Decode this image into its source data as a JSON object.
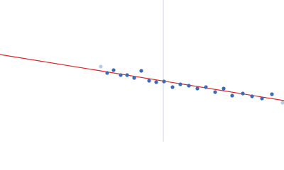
{
  "chart_data": {
    "type": "scatter",
    "xlim": [
      0,
      400
    ],
    "ylim": [
      0,
      200
    ],
    "series": [
      {
        "color": "#b8cbe6",
        "x": [
          142,
          398
        ],
        "y": [
          106,
          55
        ]
      },
      {
        "color": "#3a6ab8",
        "x": [
          151,
          160,
          170,
          179,
          189,
          199,
          210,
          220,
          231,
          243,
          254,
          266,
          278,
          290,
          303,
          315,
          327,
          342,
          355,
          369,
          383
        ],
        "y": [
          97,
          101,
          94,
          94,
          90,
          100,
          86,
          84,
          85,
          77,
          81,
          79,
          75,
          77,
          70,
          75,
          65,
          68,
          64,
          61,
          67
        ]
      }
    ],
    "fit": {
      "color": "#e02020",
      "x": [
        0,
        400
      ],
      "y": [
        123,
        58
      ]
    },
    "vline": {
      "color": "#c8d4ec",
      "x": 230
    }
  }
}
